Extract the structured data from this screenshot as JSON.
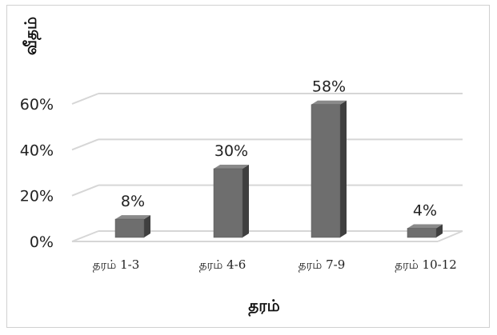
{
  "chart_data": {
    "type": "bar",
    "categories": [
      "தரம்  1-3",
      "தரம்  4-6",
      "தரம்  7-9",
      "தரம்  10-12"
    ],
    "values": [
      8,
      30,
      58,
      4
    ],
    "data_labels": [
      "8%",
      "30%",
      "58%",
      "4%"
    ],
    "title": "",
    "xlabel": "தரம்",
    "ylabel": "வீதம்",
    "yticks": [
      "0%",
      "20%",
      "40%",
      "60%"
    ],
    "ylim": [
      0,
      60
    ],
    "grid": true,
    "legend": "none",
    "colors": {
      "bar_front": "#6e6e6e",
      "bar_side": "#3f3f3f",
      "bar_top": "#8a8a8a",
      "grid": "#d6d6d6"
    }
  }
}
